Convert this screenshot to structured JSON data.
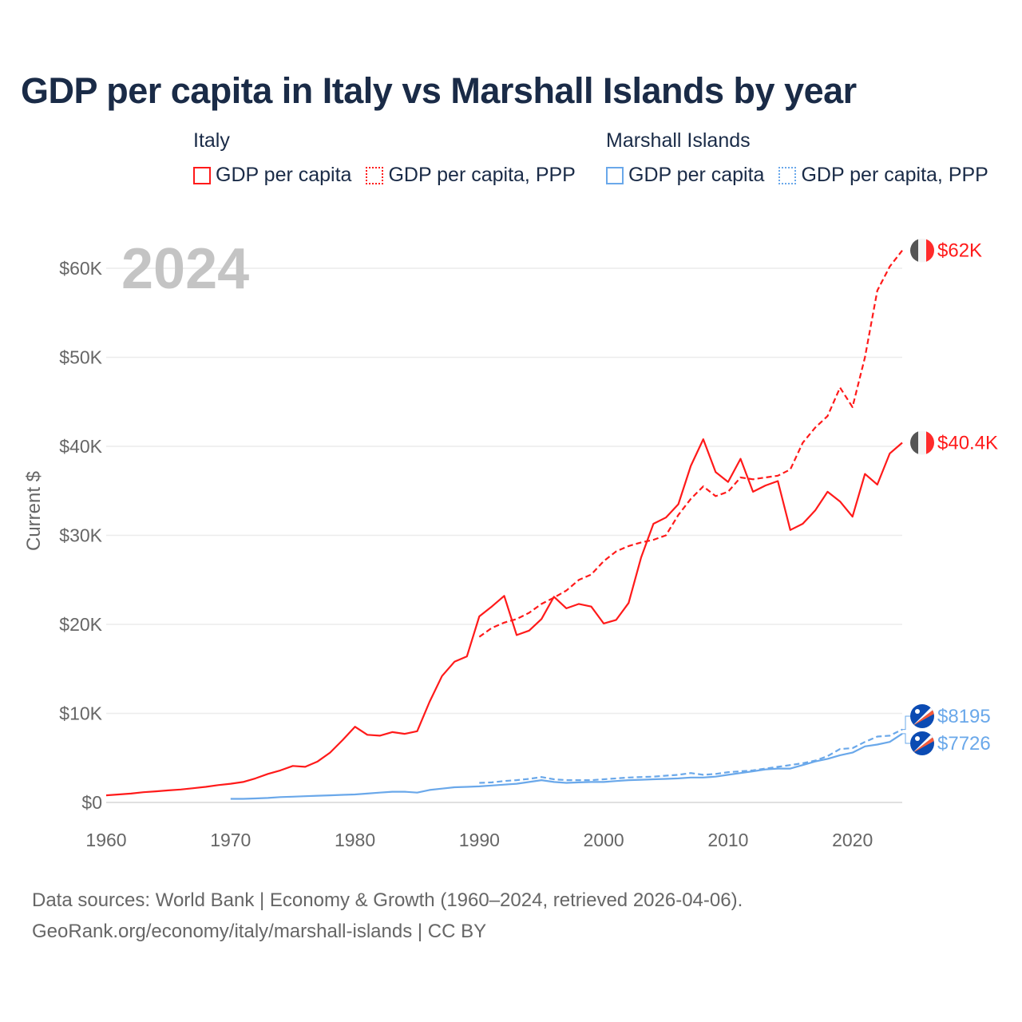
{
  "title": "GDP per capita in Italy vs Marshall Islands by year",
  "year_watermark": "2024",
  "legend": {
    "groups": [
      {
        "country": "Italy",
        "items": [
          "GDP per capita",
          "GDP per capita, PPP"
        ],
        "color": "#ff1a1a"
      },
      {
        "country": "Marshall Islands",
        "items": [
          "GDP per capita",
          "GDP per capita, PPP"
        ],
        "color": "#6aa8ea"
      }
    ]
  },
  "source": {
    "line1": "Data sources: World Bank | Economy & Growth (1960–2024, retrieved 2026-04-06).",
    "line2": "GeoRank.org/economy/italy/marshall-islands | CC BY"
  },
  "chart_data": {
    "type": "line",
    "title": "GDP per capita in Italy vs Marshall Islands by year",
    "xlabel": "",
    "ylabel": "Current $",
    "xlim": [
      1960,
      2024
    ],
    "ylim": [
      0,
      62000
    ],
    "x_ticks": [
      1960,
      1970,
      1980,
      1990,
      2000,
      2010,
      2020
    ],
    "x_tick_labels": [
      "1960",
      "1970",
      "1980",
      "1990",
      "2000",
      "2010",
      "2020"
    ],
    "y_ticks": [
      0,
      10000,
      20000,
      30000,
      40000,
      50000,
      60000
    ],
    "y_tick_labels": [
      "$0",
      "$10K",
      "$20K",
      "$30K",
      "$40K",
      "$50K",
      "$60K"
    ],
    "grid": true,
    "legend_position": "top",
    "series": [
      {
        "name": "Italy – GDP per capita",
        "color": "#ff1a1a",
        "dash": false,
        "start": 1960,
        "end_label": "$40.4K",
        "values": [
          800,
          900,
          1000,
          1150,
          1250,
          1350,
          1450,
          1600,
          1750,
          1950,
          2100,
          2300,
          2700,
          3200,
          3600,
          4100,
          4000,
          4600,
          5600,
          7000,
          8500,
          7600,
          7500,
          7900,
          7700,
          8000,
          11300,
          14200,
          15800,
          16400,
          20900,
          22000,
          23200,
          18800,
          19300,
          20600,
          23100,
          21800,
          22300,
          22000,
          20100,
          20500,
          22400,
          27500,
          31300,
          32000,
          33500,
          37800,
          40800,
          37100,
          36000,
          38600,
          34900,
          35600,
          36100,
          30600,
          31300,
          32800,
          34900,
          33800,
          32100,
          36900,
          35700,
          39200,
          40400
        ]
      },
      {
        "name": "Italy – GDP per capita, PPP",
        "color": "#ff1a1a",
        "dash": true,
        "start": 1990,
        "end_label": "$62K",
        "values": [
          18600,
          19600,
          20200,
          20600,
          21300,
          22300,
          23000,
          23800,
          25000,
          25600,
          27100,
          28200,
          28800,
          29200,
          29500,
          30000,
          32300,
          34100,
          35500,
          34400,
          34900,
          36500,
          36300,
          36500,
          36700,
          37400,
          40400,
          42100,
          43400,
          46600,
          44400,
          50000,
          57500,
          60200,
          62000
        ]
      },
      {
        "name": "Marshall Islands – GDP per capita",
        "color": "#6aa8ea",
        "dash": false,
        "start": 1970,
        "end_label": "$7726",
        "values": [
          400,
          400,
          450,
          500,
          600,
          650,
          700,
          750,
          800,
          850,
          900,
          1000,
          1100,
          1200,
          1200,
          1100,
          1400,
          1550,
          1700,
          1750,
          1800,
          1900,
          2000,
          2100,
          2300,
          2500,
          2300,
          2200,
          2250,
          2300,
          2300,
          2400,
          2500,
          2550,
          2600,
          2650,
          2700,
          2800,
          2800,
          2900,
          3100,
          3300,
          3500,
          3700,
          3800,
          3800,
          4200,
          4600,
          4900,
          5300,
          5600,
          6300,
          6500,
          6800,
          7726
        ]
      },
      {
        "name": "Marshall Islands – GDP per capita, PPP",
        "color": "#6aa8ea",
        "dash": true,
        "start": 1990,
        "end_label": "$8195",
        "values": [
          2200,
          2250,
          2400,
          2500,
          2650,
          2850,
          2600,
          2500,
          2500,
          2500,
          2600,
          2700,
          2800,
          2850,
          2900,
          3000,
          3100,
          3300,
          3100,
          3200,
          3400,
          3500,
          3600,
          3800,
          4000,
          4200,
          4400,
          4700,
          5200,
          6000,
          6100,
          6800,
          7400,
          7500,
          8195
        ]
      }
    ]
  }
}
